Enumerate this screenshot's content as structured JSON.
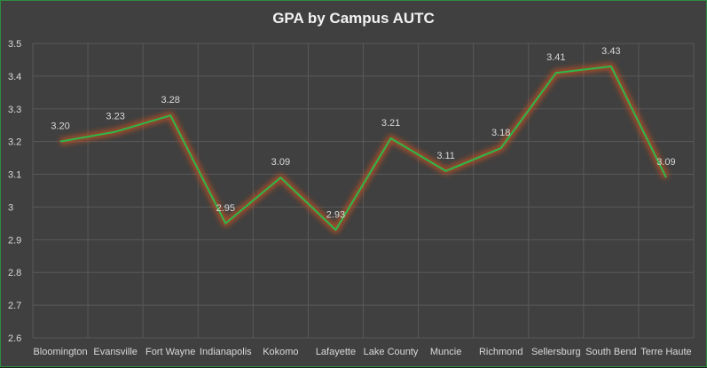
{
  "chart_data": {
    "type": "line",
    "title": "GPA by Campus AUTC",
    "categories": [
      "Bloomington",
      "Evansville",
      "Fort Wayne",
      "Indianapolis",
      "Kokomo",
      "Lafayette",
      "Lake County",
      "Muncie",
      "Richmond",
      "Sellersburg",
      "South Bend",
      "Terre Haute"
    ],
    "series": [
      {
        "values": [
          3.2,
          3.23,
          3.28,
          2.95,
          3.09,
          2.93,
          3.21,
          3.11,
          3.18,
          3.41,
          3.43,
          3.09
        ],
        "labels": [
          "3.20",
          "3.23",
          "3.28",
          "2.95",
          "3.09",
          "2.93",
          "3.21",
          "3.11",
          "3.18",
          "3.41",
          "3.43",
          "3.09"
        ],
        "color": "#2db84a",
        "glow_color": "#c0501f"
      }
    ],
    "ylim": [
      2.6,
      3.5
    ],
    "yticks": [
      "2.6",
      "2.7",
      "2.8",
      "2.9",
      "3",
      "3.1",
      "3.2",
      "3.3",
      "3.4",
      "3.5"
    ],
    "grid": true,
    "background": "#404040",
    "gridline_color": "#595959"
  }
}
